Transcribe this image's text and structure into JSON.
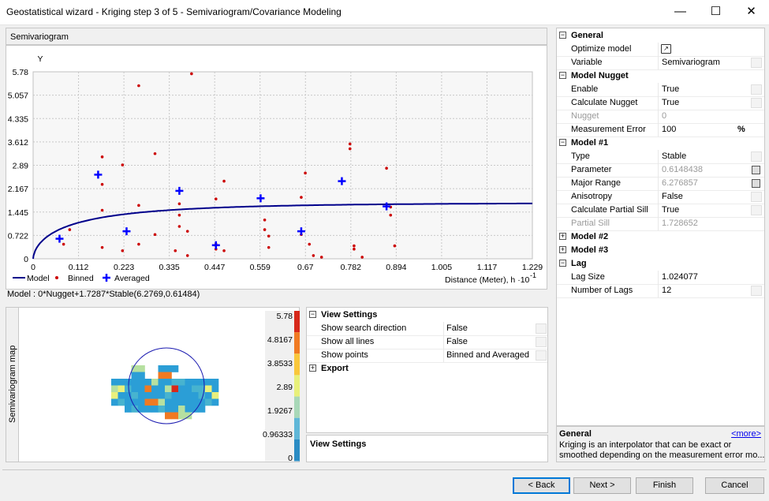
{
  "window": {
    "title": "Geostatistical wizard - Kriging step 3 of 5 - Semivariogram/Covariance Modeling",
    "minimize": "—",
    "maximize": "☐",
    "close": "✕"
  },
  "semivariogram": {
    "panel_title": "Semivariogram",
    "y_label": "Y",
    "y_ticks": [
      "5.78",
      "5.057",
      "4.335",
      "3.612",
      "2.89",
      "2.167",
      "1.445",
      "0.722",
      "0"
    ],
    "x_ticks": [
      "0.112",
      "0.223",
      "0.335",
      "0.447",
      "0.559",
      "0.67",
      "0.782",
      "0.894",
      "1.005",
      "1.117",
      "1.229"
    ],
    "x_label": "Distance (Meter), h ·10",
    "x_label_exp": "-1",
    "legend": {
      "model": "Model",
      "binned": "Binned",
      "averaged": "Averaged"
    },
    "model_formula": "Model : 0*Nugget+1.7287*Stable(6.2769,0.61484)",
    "colors": {
      "model": "#00008b",
      "binned": "#cc0000",
      "averaged": "#0000ff"
    },
    "binned_points": [
      [
        0.075,
        0.45
      ],
      [
        0.09,
        0.9
      ],
      [
        0.17,
        3.15
      ],
      [
        0.17,
        2.3
      ],
      [
        0.17,
        1.5
      ],
      [
        0.17,
        0.35
      ],
      [
        0.22,
        2.9
      ],
      [
        0.22,
        0.25
      ],
      [
        0.26,
        5.35
      ],
      [
        0.26,
        1.65
      ],
      [
        0.26,
        0.45
      ],
      [
        0.3,
        3.25
      ],
      [
        0.3,
        0.75
      ],
      [
        0.35,
        0.25
      ],
      [
        0.36,
        1.7
      ],
      [
        0.36,
        1.35
      ],
      [
        0.36,
        1.0
      ],
      [
        0.38,
        0.1
      ],
      [
        0.38,
        0.85
      ],
      [
        0.39,
        5.72
      ],
      [
        0.45,
        1.85
      ],
      [
        0.45,
        0.45
      ],
      [
        0.45,
        0.3
      ],
      [
        0.47,
        2.4
      ],
      [
        0.47,
        0.25
      ],
      [
        0.57,
        1.2
      ],
      [
        0.57,
        0.9
      ],
      [
        0.58,
        0.35
      ],
      [
        0.58,
        0.7
      ],
      [
        0.66,
        1.9
      ],
      [
        0.66,
        0.75
      ],
      [
        0.67,
        2.65
      ],
      [
        0.68,
        0.45
      ],
      [
        0.69,
        0.1
      ],
      [
        0.71,
        0.05
      ],
      [
        0.78,
        3.55
      ],
      [
        0.78,
        3.4
      ],
      [
        0.79,
        0.4
      ],
      [
        0.79,
        0.3
      ],
      [
        0.81,
        0.05
      ],
      [
        0.87,
        2.8
      ],
      [
        0.88,
        1.6
      ],
      [
        0.88,
        1.35
      ],
      [
        0.89,
        0.4
      ]
    ],
    "averaged_points": [
      [
        0.065,
        0.62
      ],
      [
        0.16,
        2.6
      ],
      [
        0.23,
        0.85
      ],
      [
        0.36,
        2.1
      ],
      [
        0.45,
        0.42
      ],
      [
        0.56,
        1.87
      ],
      [
        0.66,
        0.85
      ],
      [
        0.76,
        2.4
      ],
      [
        0.87,
        1.62
      ]
    ],
    "model_params": {
      "sill": 1.7287,
      "range": 0.62769,
      "shape": 0.61484
    },
    "xlim": [
      0,
      1.229
    ],
    "ylim": [
      0,
      5.78
    ]
  },
  "map": {
    "label": "Semivariogram map",
    "color_ticks": [
      "5.78",
      "4.8167",
      "3.8533",
      "2.89",
      "1.9267",
      "0.96333",
      "0"
    ],
    "color_stops": [
      "#d7281a",
      "#f07a22",
      "#f9c73b",
      "#e8f07a",
      "#a8d8b8",
      "#5fb7d8",
      "#2b8cc4"
    ]
  },
  "view_settings": {
    "header": "View Settings",
    "rows": [
      {
        "label": "Show search direction",
        "value": "False"
      },
      {
        "label": "Show all lines",
        "value": "False"
      },
      {
        "label": "Show points",
        "value": "Binned and Averaged"
      }
    ],
    "export": "Export",
    "desc_title": "View Settings"
  },
  "properties": {
    "sections": [
      {
        "name": "General",
        "expanded": true,
        "rows": [
          {
            "label": "Optimize model",
            "value": "",
            "icon": "optimize"
          },
          {
            "label": "Variable",
            "value": "Semivariogram",
            "dd": true
          }
        ]
      },
      {
        "name": "Model Nugget",
        "expanded": true,
        "rows": [
          {
            "label": "Enable",
            "value": "True",
            "dd": true
          },
          {
            "label": "Calculate Nugget",
            "value": "True",
            "dd": true
          },
          {
            "label": "Nugget",
            "value": "0",
            "disabled": true
          },
          {
            "label": "Measurement Error",
            "value": "100",
            "unit": "%"
          }
        ]
      },
      {
        "name": "Model #1",
        "expanded": true,
        "rows": [
          {
            "label": "Type",
            "value": "Stable",
            "dd": true
          },
          {
            "label": "Parameter",
            "value": "0.6148438",
            "calc": true,
            "greyval": true
          },
          {
            "label": "Major Range",
            "value": "6.276857",
            "calc": true,
            "greyval": true
          },
          {
            "label": "Anisotropy",
            "value": "False",
            "dd": true
          },
          {
            "label": "Calculate Partial Sill",
            "value": "True",
            "dd": true
          },
          {
            "label": "Partial Sill",
            "value": "1.728652",
            "disabled": true
          }
        ]
      },
      {
        "name": "Model #2",
        "expanded": false,
        "rows": []
      },
      {
        "name": "Model #3",
        "expanded": false,
        "rows": []
      },
      {
        "name": "Lag",
        "expanded": true,
        "rows": [
          {
            "label": "Lag Size",
            "value": "1.024077"
          },
          {
            "label": "Number of Lags",
            "value": "12",
            "dd": true
          }
        ]
      }
    ],
    "desc_title": "General",
    "more_link": "<more>",
    "desc_text_1": "Kriging is an interpolator that can be exact or",
    "desc_text_2": "smoothed depending on the measurement error mo..."
  },
  "buttons": {
    "back": "< Back",
    "next": "Next >",
    "finish": "Finish",
    "cancel": "Cancel"
  }
}
